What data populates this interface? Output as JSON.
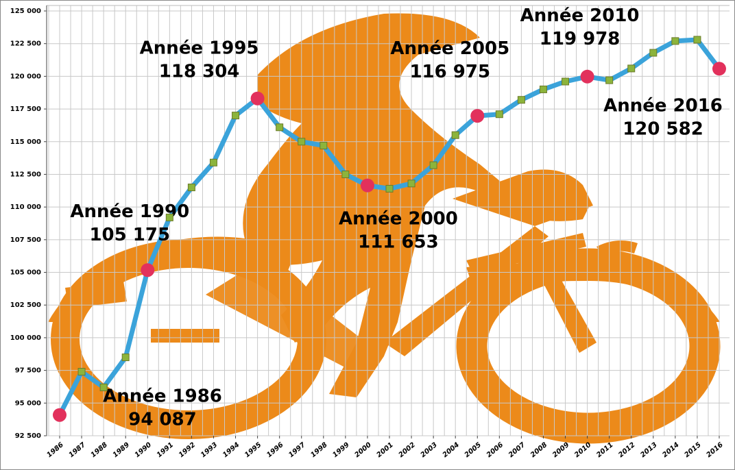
{
  "chart_data": {
    "type": "line",
    "categories": [
      "1986",
      "1987",
      "1988",
      "1989",
      "1990",
      "1991",
      "1992",
      "1993",
      "1994",
      "1995",
      "1996",
      "1997",
      "1998",
      "1999",
      "2000",
      "2001",
      "2002",
      "2003",
      "2004",
      "2005",
      "2006",
      "2007",
      "2008",
      "2009",
      "2010",
      "2011",
      "2012",
      "2013",
      "2014",
      "2015",
      "2016"
    ],
    "values": [
      94087,
      97400,
      96200,
      98500,
      105175,
      109200,
      111500,
      113400,
      117000,
      118304,
      116100,
      115000,
      114700,
      112500,
      111653,
      111400,
      111800,
      113200,
      115500,
      116975,
      117100,
      118200,
      119000,
      119600,
      119978,
      119700,
      120600,
      121800,
      122700,
      122800,
      120582
    ],
    "value_labels": [
      "94 087",
      null,
      null,
      null,
      "105 175",
      null,
      null,
      null,
      null,
      "118 304",
      null,
      null,
      null,
      null,
      "111 653",
      null,
      null,
      null,
      null,
      "116 975",
      null,
      null,
      null,
      null,
      "119 978",
      null,
      null,
      null,
      null,
      null,
      "120 582"
    ],
    "point_labels": [
      "Année 1986",
      null,
      null,
      null,
      "Année 1990",
      null,
      null,
      null,
      null,
      "Année 1995",
      null,
      null,
      null,
      null,
      "Année 2000",
      null,
      null,
      null,
      null,
      "Année 2005",
      null,
      null,
      null,
      null,
      "Année 2010",
      null,
      null,
      null,
      null,
      null,
      "Année 2016"
    ],
    "color": "#3ba3da",
    "marker_color": "#8cb43c",
    "highlight_color": "#e2315c",
    "ylim": [
      92500,
      125000
    ],
    "yticks": [
      {
        "value": 92500,
        "label": "92 500"
      },
      {
        "value": 95000,
        "label": "95 000"
      },
      {
        "value": 97500,
        "label": "97 500"
      },
      {
        "value": 100000,
        "label": "100 000"
      },
      {
        "value": 102500,
        "label": "102 500"
      },
      {
        "value": 105000,
        "label": "105 000"
      },
      {
        "value": 107500,
        "label": "107 500"
      },
      {
        "value": 110000,
        "label": "110 000"
      },
      {
        "value": 112500,
        "label": "112 500"
      },
      {
        "value": 115000,
        "label": "115 000"
      },
      {
        "value": 117500,
        "label": "117 500"
      },
      {
        "value": 120000,
        "label": "120 000"
      },
      {
        "value": 122500,
        "label": "122 500"
      },
      {
        "value": 125000,
        "label": "125 000"
      }
    ],
    "grid": true
  }
}
